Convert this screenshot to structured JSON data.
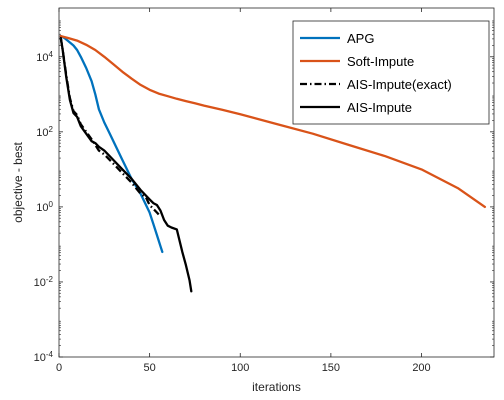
{
  "chart_data": {
    "type": "line",
    "title": "",
    "xlabel": "iterations",
    "ylabel": "objective - best",
    "xlim": [
      0,
      240
    ],
    "ylim_log10": [
      -4,
      5.3
    ],
    "y_scale": "log",
    "grid": false,
    "legend_position": "top-right",
    "x_ticks": [
      0,
      50,
      100,
      150,
      200
    ],
    "y_ticks": [
      {
        "value_log10": -4,
        "base": "10",
        "exp": "-4"
      },
      {
        "value_log10": -2,
        "base": "10",
        "exp": "-2"
      },
      {
        "value_log10": 0,
        "base": "10",
        "exp": "0"
      },
      {
        "value_log10": 2,
        "base": "10",
        "exp": "2"
      },
      {
        "value_log10": 4,
        "base": "10",
        "exp": "4"
      }
    ],
    "series": [
      {
        "name": "APG",
        "color": "#0072BD",
        "dash": "solid",
        "x": [
          1,
          3,
          5,
          8,
          10,
          12,
          15,
          18,
          20,
          22,
          25,
          28,
          30,
          35,
          40,
          45,
          50,
          52,
          54,
          56,
          57
        ],
        "y_log10": [
          4.55,
          4.5,
          4.42,
          4.3,
          4.18,
          4.0,
          3.7,
          3.35,
          3.0,
          2.6,
          2.25,
          1.95,
          1.75,
          1.25,
          0.75,
          0.35,
          -0.15,
          -0.45,
          -0.75,
          -1.05,
          -1.2
        ]
      },
      {
        "name": "Soft-Impute",
        "color": "#D95319",
        "dash": "solid",
        "x": [
          1,
          5,
          10,
          15,
          20,
          25,
          30,
          35,
          40,
          45,
          50,
          55,
          60,
          65,
          70,
          75,
          80,
          90,
          100,
          120,
          140,
          160,
          180,
          200,
          220,
          235
        ],
        "y_log10": [
          4.55,
          4.5,
          4.43,
          4.32,
          4.18,
          4.0,
          3.8,
          3.6,
          3.42,
          3.25,
          3.12,
          3.02,
          2.95,
          2.88,
          2.82,
          2.76,
          2.7,
          2.59,
          2.47,
          2.21,
          1.95,
          1.65,
          1.35,
          1.0,
          0.5,
          0.0
        ]
      },
      {
        "name": "AIS-Impute(exact)",
        "color": "#000000",
        "dash": "dashdot",
        "x": [
          1,
          2,
          4,
          6,
          8,
          10,
          12,
          15,
          18,
          20,
          22,
          25,
          30,
          35,
          40,
          45,
          48,
          50,
          52,
          54,
          55
        ],
        "y_log10": [
          4.5,
          4.2,
          3.5,
          2.9,
          2.55,
          2.45,
          2.2,
          2.0,
          1.8,
          1.65,
          1.5,
          1.4,
          1.15,
          0.9,
          0.65,
          0.35,
          0.25,
          0.05,
          -0.05,
          -0.15,
          -0.2
        ]
      },
      {
        "name": "AIS-Impute",
        "color": "#000000",
        "dash": "solid",
        "x": [
          1,
          2,
          4,
          6,
          8,
          10,
          12,
          15,
          18,
          20,
          22,
          25,
          30,
          35,
          40,
          45,
          50,
          52,
          54,
          56,
          58,
          60,
          62,
          65,
          68,
          70,
          72,
          73
        ],
        "y_log10": [
          4.5,
          4.2,
          3.45,
          2.85,
          2.5,
          2.4,
          2.15,
          1.95,
          1.75,
          1.7,
          1.6,
          1.5,
          1.25,
          1.0,
          0.75,
          0.45,
          0.2,
          0.1,
          0.05,
          -0.1,
          -0.35,
          -0.5,
          -0.55,
          -0.6,
          -1.2,
          -1.55,
          -1.95,
          -2.25
        ]
      }
    ]
  }
}
